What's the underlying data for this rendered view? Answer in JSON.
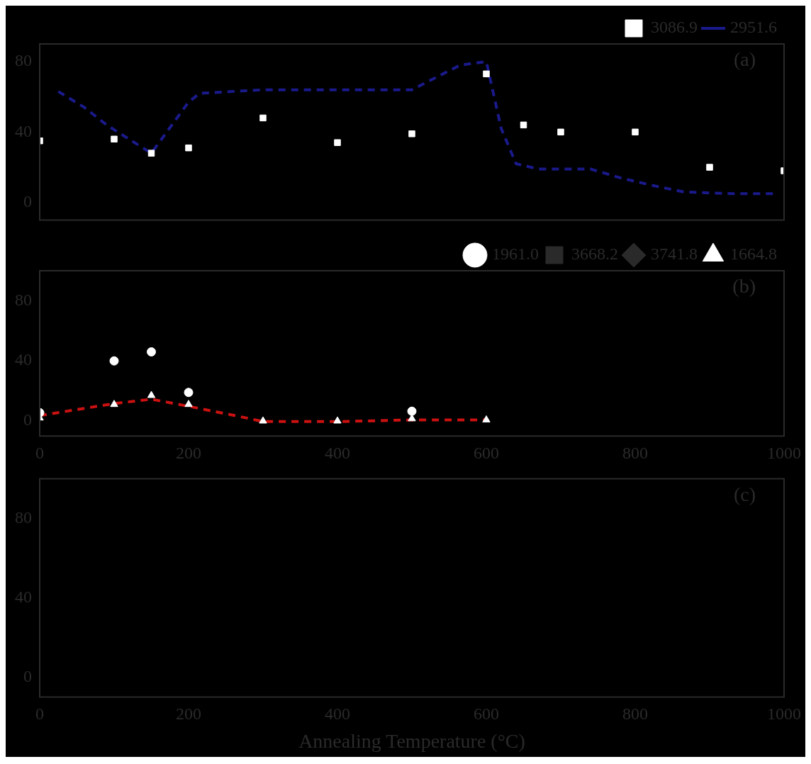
{
  "chart_data": [
    {
      "type": "scatter",
      "xlim": [
        0,
        1000
      ],
      "xticks": [
        0,
        200,
        400,
        600,
        800,
        1000
      ],
      "ylim": [
        -10,
        90
      ],
      "yticks": [
        0,
        40,
        80
      ],
      "tick_labels": "y",
      "legend": "top right",
      "grid": false,
      "annotations": [
        "(a)"
      ],
      "series": [
        {
          "name": "3086.9",
          "type": "scatter",
          "marker": "square",
          "color": "#ffffff",
          "x": [
            0,
            100,
            150,
            200,
            300,
            400,
            500,
            600,
            650,
            700,
            800,
            900,
            1000
          ],
          "values": [
            35,
            36,
            28,
            31,
            48,
            34,
            39,
            73,
            44,
            40,
            40,
            20,
            18
          ]
        },
        {
          "name": "2951.6",
          "type": "line",
          "line_style": "dashed",
          "marker": "none",
          "color": "#1a1a8c",
          "x": [
            25,
            60,
            90,
            150,
            200,
            215,
            300,
            500,
            565,
            600,
            620,
            640,
            670,
            740,
            780,
            820,
            865,
            930,
            985
          ],
          "values": [
            63,
            54,
            44,
            28,
            57,
            62,
            64,
            64,
            78,
            80,
            42,
            22,
            19,
            19,
            14,
            10,
            6,
            5,
            5
          ]
        }
      ]
    },
    {
      "type": "scatter",
      "xlim": [
        0,
        1000
      ],
      "xticks": [
        0,
        200,
        400,
        600,
        800,
        1000
      ],
      "ylim": [
        -10,
        100
      ],
      "yticks": [
        0,
        40,
        80
      ],
      "legend": "top right",
      "grid": false,
      "annotations": [
        "(b)"
      ],
      "series": [
        {
          "name": "1961.0",
          "type": "scatter",
          "marker": "circle",
          "color": "#ffffff",
          "x": [
            0,
            100,
            150,
            200,
            500
          ],
          "values": [
            5.5,
            40,
            46,
            19,
            6.5
          ]
        },
        {
          "name": "3668.2",
          "type": "scatter",
          "marker": "square"
        },
        {
          "name": "3741.8",
          "type": "scatter",
          "marker": "diamond"
        },
        {
          "name": "1664.8",
          "type": "scatter",
          "marker": "triangle",
          "color": "#ffffff",
          "x": [
            0,
            100,
            150,
            200,
            300,
            400,
            500,
            600
          ],
          "values": [
            2,
            11,
            17,
            11,
            0,
            0,
            1.5,
            0.7
          ]
        },
        {
          "type": "line",
          "line_style": "dashed",
          "marker": "none",
          "color": "#cc1111",
          "x": [
            0,
            100,
            150,
            200,
            280,
            300,
            400,
            500,
            600
          ],
          "values": [
            3.6,
            11.6,
            14.5,
            9.8,
            1.8,
            -0.4,
            -0.4,
            0.7,
            0.7
          ]
        }
      ]
    },
    {
      "type": "scatter",
      "xlim": [
        0,
        1000
      ],
      "xticks": [
        0,
        200,
        400,
        600,
        800,
        1000
      ],
      "ylim": [
        -10,
        100
      ],
      "yticks": [
        0,
        40,
        80
      ],
      "grid": false,
      "xlabel": "Annealing Temperature (°C)",
      "annotations": [
        "(c)"
      ]
    }
  ]
}
